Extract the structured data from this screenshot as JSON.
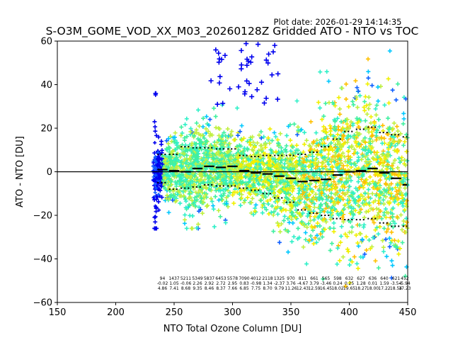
{
  "chart_data": {
    "type": "scatter",
    "title": "S-O3M_GOME_VOD_XX_M03_20260128Z Gridded ATO - NTO vs TOC",
    "plot_date": "Plot date: 2026-01-29 14:14:35",
    "xlabel": "NTO Total Ozone Column [DU]",
    "ylabel": "ATO - NTO [DU]",
    "xlim": [
      150,
      450
    ],
    "ylim": [
      -60,
      60
    ],
    "xticks": [
      150,
      200,
      250,
      300,
      350,
      400,
      450
    ],
    "xtick_labels": [
      "150",
      "200",
      "250",
      "300",
      "350",
      "400",
      "450"
    ],
    "yticks": [
      -60,
      -40,
      -20,
      0,
      20,
      40,
      60
    ],
    "ytick_labels": [
      "−60",
      "−40",
      "−20",
      "0",
      "20",
      "40",
      "60"
    ],
    "grid": false,
    "reference_line_y": 0,
    "bin_edges": [
      235,
      245,
      255,
      265,
      275,
      285,
      295,
      305,
      315,
      325,
      335,
      345,
      355,
      365,
      375,
      385,
      395,
      405,
      415,
      425,
      435,
      445,
      450
    ],
    "bin_medians": [
      1.0,
      0.5,
      0.0,
      1.5,
      2.5,
      2.0,
      2.5,
      0.5,
      -0.5,
      -1.0,
      -2.0,
      -3.0,
      -4.5,
      -4.0,
      -3.5,
      -1.5,
      0.0,
      0.5,
      1.5,
      -0.5,
      -3.0,
      -6.0
    ],
    "bin_p_high": [
      8.0,
      8.0,
      11.5,
      11.0,
      11.0,
      10.5,
      10.5,
      7.5,
      7.0,
      7.5,
      7.5,
      7.5,
      8.0,
      9.0,
      11.5,
      15.0,
      18.5,
      19.5,
      20.5,
      18.0,
      17.0,
      16.0
    ],
    "bin_p_low": [
      -5.0,
      -8.0,
      -7.5,
      -7.0,
      -6.0,
      -6.5,
      -6.5,
      -7.5,
      -8.5,
      -10.0,
      -12.0,
      -14.0,
      -17.5,
      -19.0,
      -20.0,
      -21.5,
      -22.0,
      -22.0,
      -21.5,
      -23.5,
      -25.0,
      -25.0
    ],
    "bin_annotations": {
      "counts": [
        "94",
        "1437",
        "5211",
        "5349",
        "5837",
        "6453",
        "5578",
        "7090",
        "4012",
        "2118",
        "1325",
        "970",
        "811",
        "661",
        "565",
        "598",
        "632",
        "627",
        "636",
        "640",
        "621",
        "452"
      ],
      "means": [
        "-0.02",
        "1.05",
        "-0.06",
        "2.26",
        "2.92",
        "2.72",
        "2.95",
        "0.83",
        "-0.98",
        "1.34",
        "-2.37",
        "3.76",
        "-4.67",
        "3.79",
        "-3.46",
        "0.24",
        "0.25",
        "1.28",
        "0.01",
        "1.59",
        "-3.54",
        "-5.94"
      ],
      "stddevs": [
        "4.86",
        "7.41",
        "8.68",
        "9.35",
        "8.46",
        "8.37",
        "7.66",
        "6.85",
        "7.75",
        "8.70",
        "9.79",
        "11.26",
        "12.43",
        "12.59",
        "16.45",
        "18.02",
        "19.65",
        "18.27",
        "18.00",
        "17.22",
        "18.54",
        "17.23"
      ]
    },
    "scatter_cloud": {
      "description": "dense cloud of '+' markers colored by a density/value colormap",
      "x_range": [
        232,
        450
      ],
      "colormap": [
        "#0000ee",
        "#1060ff",
        "#00c8ff",
        "#30f0c8",
        "#40f0a0",
        "#c0f040",
        "#f0f000",
        "#ffc000"
      ],
      "outliers_high_blue_x_range": [
        280,
        340
      ],
      "outliers_high_blue_y_range": [
        30,
        60
      ]
    },
    "colors": {
      "axes": "#000000",
      "median": "#000000",
      "percentile_dots": "#000000",
      "zero_line": "#000000"
    }
  }
}
